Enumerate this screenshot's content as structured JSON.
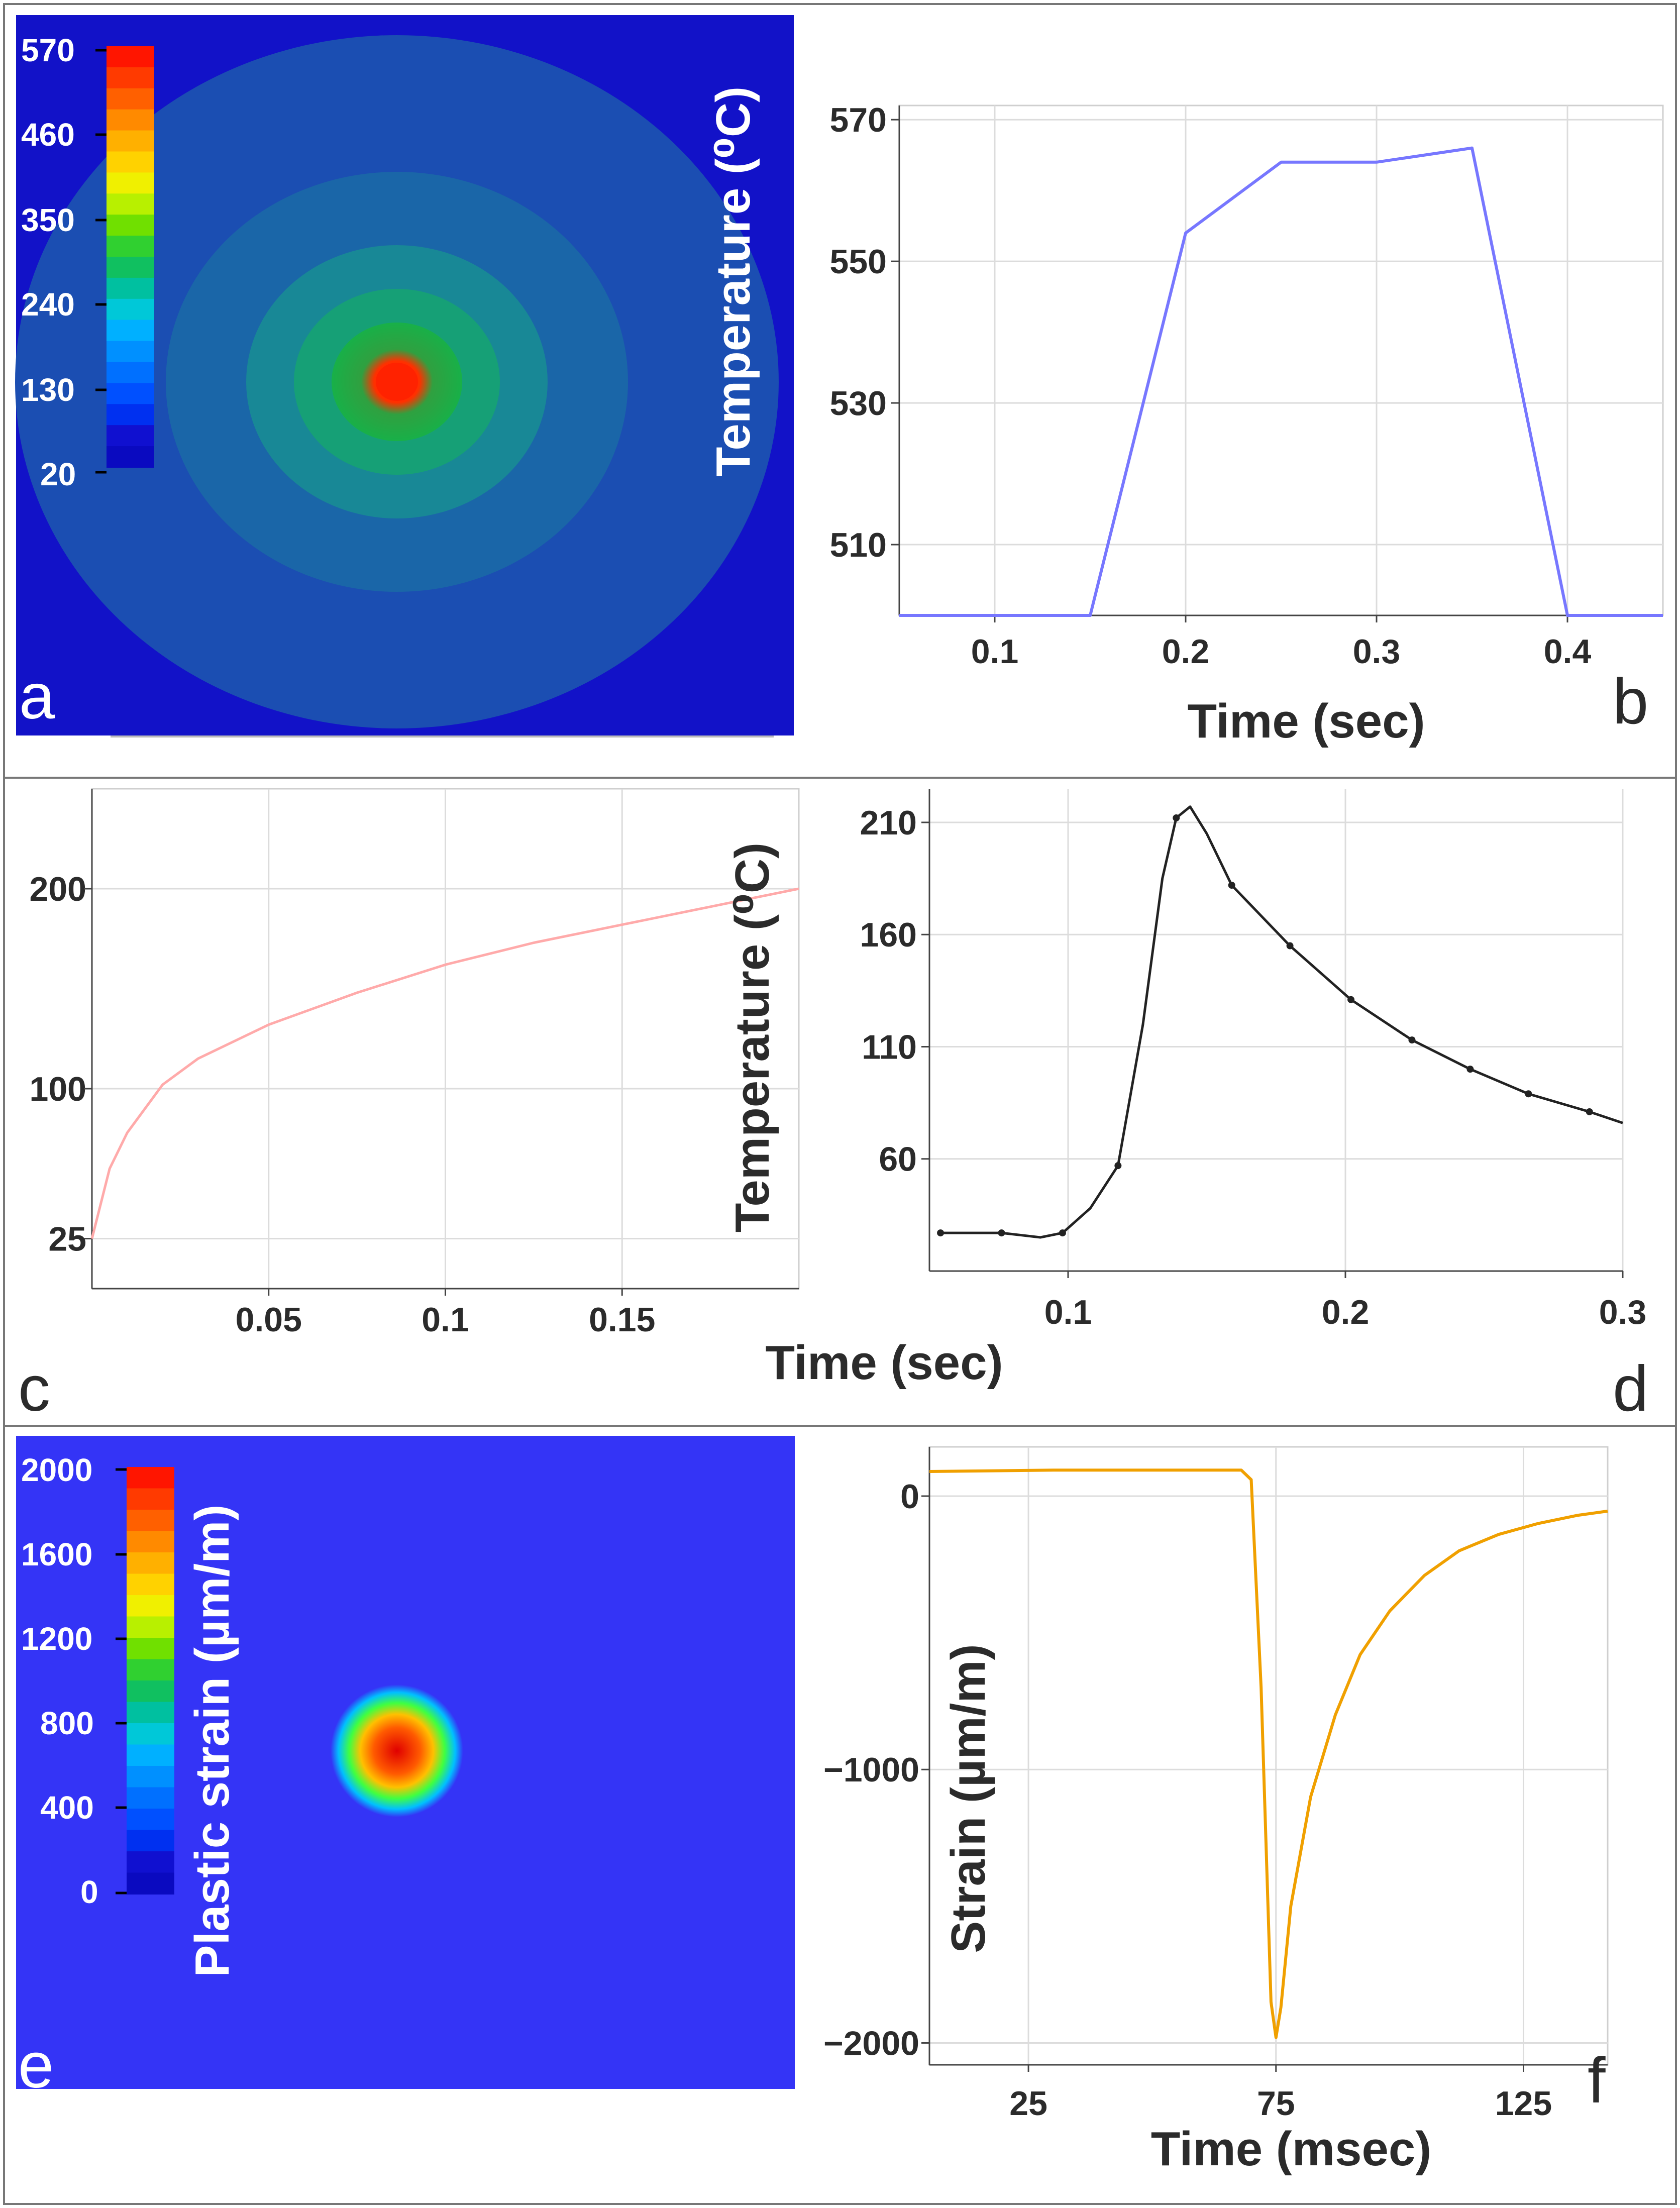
{
  "figure": {
    "panel_labels": [
      "a",
      "b",
      "c",
      "d",
      "e",
      "f"
    ]
  },
  "colorbar_a": {
    "title": "Temperature (⁰C)",
    "ticks": [
      "570",
      "460",
      "350",
      "240",
      "130",
      "20"
    ]
  },
  "colorbar_e": {
    "title": "Plastic strain (µm/m)",
    "ticks": [
      "2000",
      "1600",
      "1200",
      "800",
      "400",
      "0"
    ]
  },
  "colors": {
    "background_blue": "#1212c8",
    "strain_background": "#3434f6",
    "line_b": "#7777ff",
    "line_c": "#ffaaaa",
    "line_d": "#222222",
    "line_f": "#f0a000"
  },
  "chart_data": [
    {
      "id": "b",
      "type": "line",
      "title": "",
      "xlabel": "Time (sec)",
      "ylabel": "",
      "xlim": [
        0.05,
        0.45
      ],
      "ylim": [
        500,
        572
      ],
      "xticks": [
        "0.1",
        "0.2",
        "0.3",
        "0.4"
      ],
      "xtick_values": [
        0.1,
        0.2,
        0.3,
        0.4
      ],
      "yticks": [
        "570",
        "550",
        "530",
        "510"
      ],
      "ytick_values": [
        570,
        550,
        530,
        510
      ],
      "series": [
        {
          "name": "temperature",
          "x": [
            0.05,
            0.15,
            0.2,
            0.25,
            0.3,
            0.35,
            0.4,
            0.45
          ],
          "y": [
            500,
            500,
            554,
            564,
            564,
            566,
            500,
            500
          ]
        }
      ]
    },
    {
      "id": "c",
      "type": "line",
      "title": "",
      "xlabel": "",
      "ylabel": "",
      "xlim": [
        0.0,
        0.2
      ],
      "ylim": [
        0,
        250
      ],
      "xticks": [
        "0.05",
        "0.1",
        "0.15"
      ],
      "xtick_values": [
        0.05,
        0.1,
        0.15
      ],
      "yticks": [
        "200",
        "100",
        "25"
      ],
      "ytick_values": [
        200,
        100,
        25
      ],
      "series": [
        {
          "name": "temperature",
          "x": [
            0.0,
            0.005,
            0.01,
            0.02,
            0.03,
            0.05,
            0.075,
            0.1,
            0.125,
            0.15,
            0.175,
            0.2
          ],
          "y": [
            25,
            60,
            78,
            102,
            115,
            132,
            148,
            162,
            173,
            182,
            191,
            200
          ]
        }
      ]
    },
    {
      "id": "d",
      "type": "line",
      "title": "",
      "xlabel": "Time (sec)",
      "ylabel": "Temperature (⁰C)",
      "xlim": [
        0.05,
        0.3
      ],
      "ylim": [
        10,
        225
      ],
      "xticks": [
        "0.1",
        "0.2",
        "0.3"
      ],
      "xtick_values": [
        0.1,
        0.2,
        0.3
      ],
      "yticks": [
        "210",
        "160",
        "110",
        "60"
      ],
      "ytick_values": [
        210,
        160,
        110,
        60
      ],
      "series": [
        {
          "name": "temperature",
          "x": [
            0.054,
            0.076,
            0.09,
            0.098,
            0.108,
            0.118,
            0.127,
            0.134,
            0.139,
            0.144,
            0.15,
            0.159,
            0.18,
            0.202,
            0.224,
            0.245,
            0.266,
            0.288,
            0.3
          ],
          "y": [
            27,
            27,
            25,
            27,
            38,
            57,
            120,
            185,
            212,
            217,
            205,
            182,
            155,
            131,
            113,
            100,
            89,
            81,
            76
          ]
        }
      ]
    },
    {
      "id": "f",
      "type": "line",
      "title": "",
      "xlabel": "Time (msec)",
      "ylabel": "Strain (µm/m)",
      "xlim": [
        5,
        142
      ],
      "ylim": [
        -2080,
        180
      ],
      "xticks": [
        "25",
        "75",
        "125"
      ],
      "xtick_values": [
        25,
        75,
        125
      ],
      "yticks": [
        "0",
        "−1000",
        "−2000"
      ],
      "ytick_values": [
        0,
        -1000,
        -2000
      ],
      "series": [
        {
          "name": "strain",
          "x": [
            5,
            30,
            50,
            68,
            70,
            72,
            74,
            75,
            76,
            78,
            82,
            87,
            92,
            98,
            105,
            112,
            120,
            128,
            136,
            142
          ],
          "y": [
            90,
            95,
            95,
            95,
            60,
            -700,
            -1850,
            -1980,
            -1870,
            -1500,
            -1100,
            -800,
            -580,
            -420,
            -290,
            -200,
            -140,
            -100,
            -70,
            -55
          ]
        }
      ]
    }
  ]
}
